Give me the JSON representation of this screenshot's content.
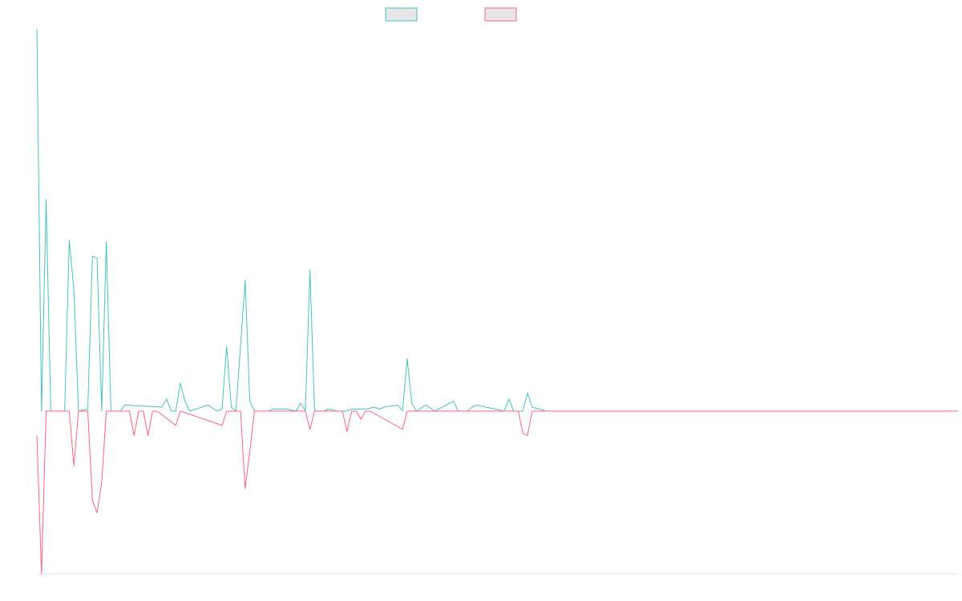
{
  "colors": {
    "series_a": "#4bc0c0",
    "series_b": "#ff6384",
    "legend_fill": "#e6e6e6",
    "axis": "#e6e6e6"
  },
  "chart_data": {
    "type": "line",
    "title": "",
    "xlabel": "",
    "ylabel": "",
    "ylim": [
      -0.8,
      1.9
    ],
    "x_count": 200,
    "grid": false,
    "legend": "top-center",
    "series": [
      {
        "color": "#4bc0c0",
        "points": [
          [
            0,
            1.9
          ],
          [
            1,
            0
          ],
          [
            2,
            1.05
          ],
          [
            3,
            0
          ],
          [
            6,
            0
          ],
          [
            7,
            0.85
          ],
          [
            8,
            0.6
          ],
          [
            9,
            0
          ],
          [
            11,
            0.01
          ],
          [
            12,
            0.77
          ],
          [
            13,
            0.76
          ],
          [
            14,
            0
          ],
          [
            15,
            0.84
          ],
          [
            16,
            0
          ],
          [
            18,
            0
          ],
          [
            19,
            0.03
          ],
          [
            27,
            0.02
          ],
          [
            28,
            0.06
          ],
          [
            29,
            0
          ],
          [
            30,
            0
          ],
          [
            31,
            0.14
          ],
          [
            32,
            0.05
          ],
          [
            33,
            0
          ],
          [
            37,
            0.03
          ],
          [
            39,
            0
          ],
          [
            40,
            0.01
          ],
          [
            41,
            0.32
          ],
          [
            42,
            0.02
          ],
          [
            43,
            0
          ],
          [
            45,
            0.65
          ],
          [
            46,
            0.05
          ],
          [
            47,
            0
          ],
          [
            50,
            0
          ],
          [
            51,
            0.01
          ],
          [
            54,
            0.01
          ],
          [
            56,
            0
          ],
          [
            57,
            0.04
          ],
          [
            58,
            0
          ],
          [
            59,
            0.7
          ],
          [
            60,
            0
          ],
          [
            62,
            0
          ],
          [
            63,
            0.01
          ],
          [
            65,
            0
          ],
          [
            67,
            0
          ],
          [
            68,
            0.01
          ],
          [
            71,
            0.01
          ],
          [
            73,
            0.02
          ],
          [
            74,
            0.01
          ],
          [
            75,
            0.02
          ],
          [
            78,
            0.03
          ],
          [
            79,
            0
          ],
          [
            80,
            0.26
          ],
          [
            81,
            0.04
          ],
          [
            82,
            0
          ],
          [
            84,
            0.03
          ],
          [
            86,
            0
          ],
          [
            90,
            0.05
          ],
          [
            91,
            0
          ],
          [
            93,
            0
          ],
          [
            94,
            0.02
          ],
          [
            95,
            0.03
          ],
          [
            101,
            0
          ],
          [
            102,
            0.06
          ],
          [
            103,
            0
          ],
          [
            105,
            0
          ],
          [
            106,
            0.09
          ],
          [
            107,
            0.02
          ],
          [
            110,
            0
          ],
          [
            199,
            0
          ]
        ]
      },
      {
        "color": "#ff6384",
        "points": [
          [
            0,
            -0.12
          ],
          [
            1,
            -0.8
          ],
          [
            2,
            0
          ],
          [
            7,
            0
          ],
          [
            8,
            -0.27
          ],
          [
            9,
            0
          ],
          [
            11,
            0
          ],
          [
            12,
            -0.44
          ],
          [
            13,
            -0.5
          ],
          [
            14,
            -0.35
          ],
          [
            15,
            0
          ],
          [
            20,
            0
          ],
          [
            21,
            -0.12
          ],
          [
            22,
            0
          ],
          [
            23,
            0
          ],
          [
            24,
            -0.12
          ],
          [
            25,
            0
          ],
          [
            26,
            0
          ],
          [
            30,
            -0.07
          ],
          [
            31,
            0
          ],
          [
            40,
            -0.07
          ],
          [
            41,
            0
          ],
          [
            44,
            0
          ],
          [
            45,
            -0.38
          ],
          [
            46,
            -0.2
          ],
          [
            47,
            0
          ],
          [
            48,
            0
          ],
          [
            58,
            0
          ],
          [
            59,
            -0.09
          ],
          [
            60,
            0
          ],
          [
            66,
            0
          ],
          [
            67,
            -0.1
          ],
          [
            68,
            0
          ],
          [
            69,
            0
          ],
          [
            70,
            -0.04
          ],
          [
            71,
            0
          ],
          [
            72,
            0
          ],
          [
            79,
            -0.09
          ],
          [
            80,
            0
          ],
          [
            104,
            0
          ],
          [
            105,
            -0.11
          ],
          [
            106,
            -0.12
          ],
          [
            107,
            0
          ],
          [
            199,
            0
          ]
        ]
      }
    ]
  }
}
